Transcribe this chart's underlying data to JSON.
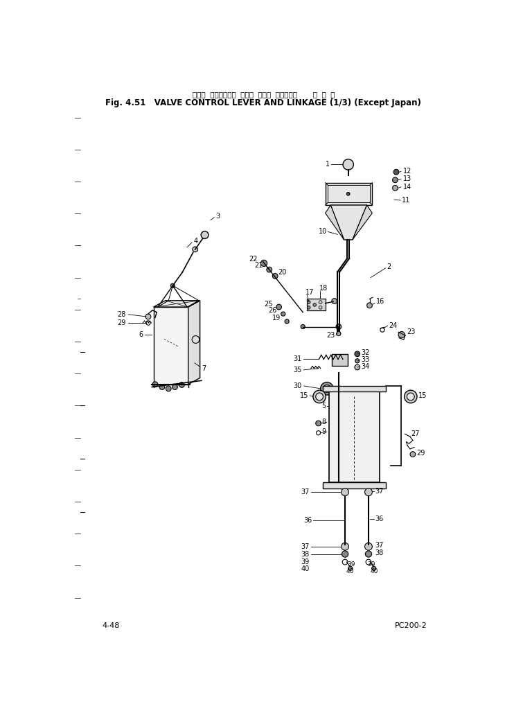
{
  "title_japanese": "バルブ  コントロール  レバー  および  リンケージ       海  外  向",
  "title_english": "Fig. 4.51   VALVE CONTROL LEVER AND LINKAGE (1/3) (Except Japan)",
  "page_left": "4-48",
  "page_right": "PC200-2",
  "bg_color": "#ffffff",
  "line_color": "#000000",
  "text_color": "#000000"
}
